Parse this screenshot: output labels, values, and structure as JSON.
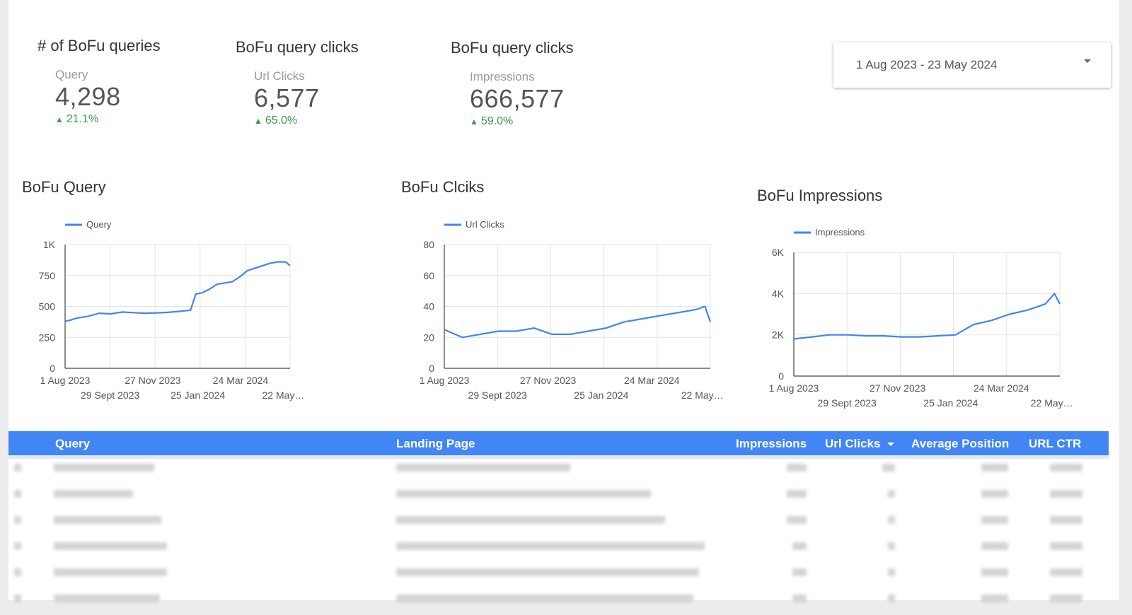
{
  "kpis": [
    {
      "title": "# of BoFu queries",
      "label": "Query",
      "value": "4,298",
      "delta": "21.1%",
      "delta_icon": "arrow-up-icon"
    },
    {
      "title": "BoFu query clicks",
      "label": "Url Clicks",
      "value": "6,577",
      "delta": "65.0%",
      "delta_icon": "arrow-up-icon"
    },
    {
      "title": "BoFu query clicks",
      "label": "Impressions",
      "value": "666,577",
      "delta": "59.0%",
      "delta_icon": "arrow-up-icon"
    }
  ],
  "date_range": {
    "label": "1 Aug 2023 - 23 May 2024",
    "icon": "dropdown-caret-icon"
  },
  "colors": {
    "accent": "#4285f4",
    "positive": "#3a9a4a",
    "header_text": "#ffffff"
  },
  "chart_data": [
    {
      "type": "line",
      "title": "BoFu Query",
      "series": [
        {
          "name": "Query",
          "points": [
            [
              0,
              380
            ],
            [
              7,
              390
            ],
            [
              15,
              405
            ],
            [
              30,
              420
            ],
            [
              45,
              445
            ],
            [
              60,
              440
            ],
            [
              75,
              455
            ],
            [
              90,
              450
            ],
            [
              105,
              445
            ],
            [
              120,
              448
            ],
            [
              135,
              452
            ],
            [
              150,
              460
            ],
            [
              165,
              470
            ],
            [
              172,
              600
            ],
            [
              180,
              610
            ],
            [
              190,
              640
            ],
            [
              200,
              680
            ],
            [
              210,
              690
            ],
            [
              220,
              700
            ],
            [
              230,
              740
            ],
            [
              240,
              790
            ],
            [
              250,
              810
            ],
            [
              260,
              830
            ],
            [
              270,
              850
            ],
            [
              280,
              860
            ],
            [
              290,
              860
            ],
            [
              296,
              830
            ]
          ]
        }
      ],
      "x_ticks_row1": [
        "1 Aug 2023",
        "27 Nov 2023",
        "24 Mar 2024"
      ],
      "x_ticks_row2": [
        "29 Sept 2023",
        "25 Jan 2024",
        "22 May…"
      ],
      "y_ticks": [
        "0",
        "250",
        "500",
        "750",
        "1K"
      ],
      "ylim": [
        0,
        1000
      ],
      "xlim": [
        0,
        296
      ],
      "grid": true,
      "legend": "top-left"
    },
    {
      "type": "line",
      "title": "BoFu Clciks",
      "series": [
        {
          "name": "Url Clicks",
          "points": [
            [
              0,
              25
            ],
            [
              20,
              20
            ],
            [
              40,
              22
            ],
            [
              60,
              24
            ],
            [
              80,
              24
            ],
            [
              100,
              26
            ],
            [
              120,
              22
            ],
            [
              140,
              22
            ],
            [
              160,
              24
            ],
            [
              180,
              26
            ],
            [
              200,
              30
            ],
            [
              220,
              32
            ],
            [
              240,
              34
            ],
            [
              260,
              36
            ],
            [
              280,
              38
            ],
            [
              290,
              40
            ],
            [
              296,
              30
            ]
          ]
        }
      ],
      "x_ticks_row1": [
        "1 Aug 2023",
        "27 Nov 2023",
        "24 Mar 2024"
      ],
      "x_ticks_row2": [
        "29 Sept 2023",
        "25 Jan 2024",
        "22 May…"
      ],
      "y_ticks": [
        "0",
        "20",
        "40",
        "60",
        "80"
      ],
      "ylim": [
        0,
        80
      ],
      "xlim": [
        0,
        296
      ],
      "grid": true,
      "legend": "top-left"
    },
    {
      "type": "line",
      "title": "BoFu Impressions",
      "series": [
        {
          "name": "Impressions",
          "points": [
            [
              0,
              1800
            ],
            [
              20,
              1900
            ],
            [
              40,
              2000
            ],
            [
              60,
              2000
            ],
            [
              80,
              1950
            ],
            [
              100,
              1950
            ],
            [
              120,
              1900
            ],
            [
              140,
              1900
            ],
            [
              160,
              1950
            ],
            [
              180,
              2000
            ],
            [
              200,
              2500
            ],
            [
              220,
              2700
            ],
            [
              240,
              3000
            ],
            [
              260,
              3200
            ],
            [
              280,
              3500
            ],
            [
              290,
              4000
            ],
            [
              296,
              3500
            ]
          ]
        }
      ],
      "x_ticks_row1": [
        "1 Aug 2023",
        "27 Nov 2023",
        "24 Mar 2024"
      ],
      "x_ticks_row2": [
        "29 Sept 2023",
        "25 Jan 2024",
        "22 May…"
      ],
      "y_ticks": [
        "0",
        "2K",
        "4K",
        "6K"
      ],
      "ylim": [
        0,
        6000
      ],
      "xlim": [
        0,
        296
      ],
      "grid": true,
      "legend": "top-left"
    }
  ],
  "table": {
    "columns": [
      "Query",
      "Landing Page",
      "Impressions",
      "Url Clicks",
      "Average Position",
      "URL CTR"
    ],
    "sort_icon": "sort-desc-icon"
  }
}
